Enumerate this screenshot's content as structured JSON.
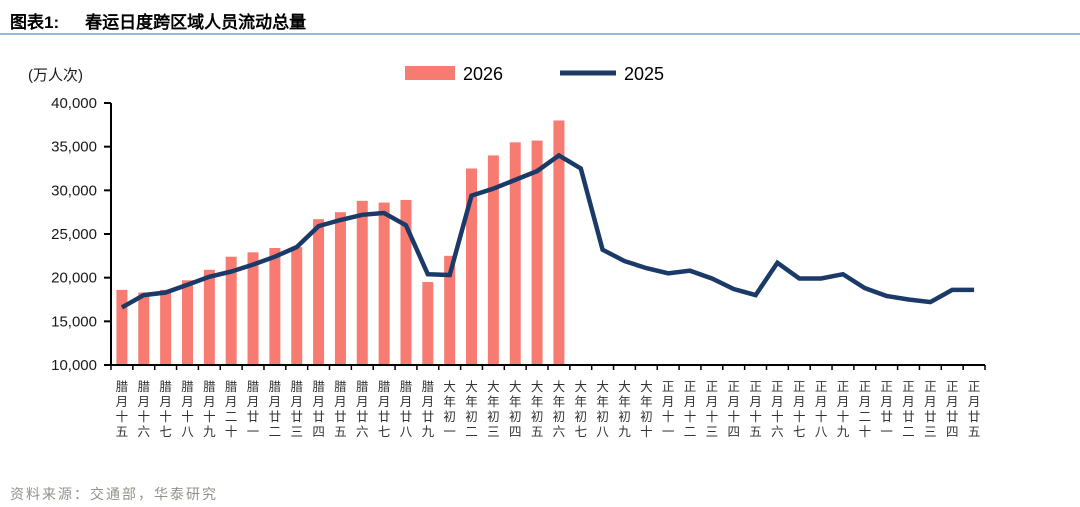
{
  "header": {
    "figure_label": "图表1:",
    "figure_title": "春运日度跨区域人员流动总量"
  },
  "unit_label": "(万人次)",
  "source": "资料来源：交通部，华泰研究",
  "colors": {
    "bar_2026": "#f87b72",
    "line_2025": "#1b3a68",
    "title_rule": "#9cb8d9",
    "axis": "#000000",
    "tick_label": "#1a1a1a",
    "x_label": "#333333",
    "source_text": "#95908a"
  },
  "chart_data": {
    "type": "bar",
    "title": "春运日度跨区域人员流动总量",
    "ylabel": "(万人次)",
    "ylim": [
      10000,
      40000
    ],
    "ytick_step": 5000,
    "grid": false,
    "legend_position": "top-center",
    "categories": [
      "腊月十五",
      "腊月十六",
      "腊月十七",
      "腊月十八",
      "腊月十九",
      "腊月二十",
      "腊月廿一",
      "腊月廿二",
      "腊月廿三",
      "腊月廿四",
      "腊月廿五",
      "腊月廿六",
      "腊月廿七",
      "腊月廿八",
      "腊月廿九",
      "大年初一",
      "大年初二",
      "大年初三",
      "大年初四",
      "大年初五",
      "大年初六",
      "大年初七",
      "大年初八",
      "大年初九",
      "大年初十",
      "正月十一",
      "正月十二",
      "正月十三",
      "正月十四",
      "正月十五",
      "正月十六",
      "正月十七",
      "正月十八",
      "正月十九",
      "正月二十",
      "正月廿一",
      "正月廿二",
      "正月廿三",
      "正月廿四",
      "正月廿五"
    ],
    "series": [
      {
        "name": "2026",
        "type": "bar",
        "color": "#f87b72",
        "values": [
          18600,
          18300,
          18600,
          19700,
          20900,
          22400,
          22900,
          23400,
          23500,
          26700,
          27500,
          28800,
          28600,
          28900,
          19500,
          22500,
          32500,
          34000,
          35500,
          35700,
          38000
        ]
      },
      {
        "name": "2025",
        "type": "line",
        "color": "#1b3a68",
        "values": [
          16600,
          18000,
          18300,
          19200,
          20100,
          20700,
          21500,
          22400,
          23500,
          25900,
          26600,
          27200,
          27400,
          26000,
          20400,
          20300,
          29400,
          30200,
          31200,
          32200,
          34000,
          32500,
          23200,
          21900,
          21100,
          20500,
          20800,
          19900,
          18700,
          18000,
          21700,
          19900,
          19900,
          20400,
          18800,
          17900,
          17500,
          17200,
          18600,
          18600
        ]
      }
    ]
  }
}
